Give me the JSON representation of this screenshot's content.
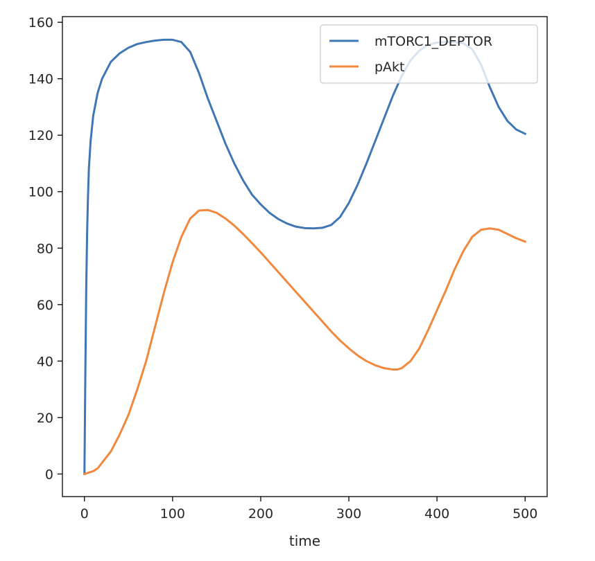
{
  "chart_data": {
    "type": "line",
    "title": "",
    "xlabel": "time",
    "ylabel": "",
    "xlim": [
      -25,
      525
    ],
    "ylim": [
      -8,
      162
    ],
    "x_ticks": [
      0,
      100,
      200,
      300,
      400,
      500
    ],
    "y_ticks": [
      0,
      20,
      40,
      60,
      80,
      100,
      120,
      140,
      160
    ],
    "x_tick_labels": [
      "0",
      "100",
      "200",
      "300",
      "400",
      "500"
    ],
    "y_tick_labels": [
      "0",
      "20",
      "40",
      "60",
      "80",
      "100",
      "120",
      "140",
      "160"
    ],
    "grid": false,
    "legend_position": "upper right",
    "series": [
      {
        "name": "mTORC1_DEPTOR",
        "color": "#3f76b4",
        "x": [
          0,
          1,
          2,
          3,
          4,
          5,
          7,
          10,
          15,
          20,
          30,
          40,
          50,
          60,
          70,
          80,
          90,
          100,
          110,
          120,
          130,
          140,
          150,
          160,
          170,
          180,
          190,
          200,
          210,
          220,
          230,
          240,
          250,
          260,
          270,
          280,
          290,
          300,
          310,
          320,
          330,
          340,
          350,
          360,
          370,
          380,
          390,
          400,
          410,
          420,
          430,
          440,
          450,
          460,
          470,
          480,
          490,
          500
        ],
        "y": [
          0,
          35,
          65,
          85,
          98,
          108,
          118,
          127,
          135,
          140,
          146,
          149,
          151,
          152.3,
          153,
          153.5,
          153.8,
          153.8,
          153,
          149.5,
          142,
          133,
          125,
          117,
          110,
          104,
          99,
          95.5,
          92.5,
          90.3,
          88.7,
          87.6,
          87.1,
          87,
          87.2,
          88.2,
          91,
          96,
          102.5,
          110,
          118,
          126,
          134,
          141,
          146.5,
          150,
          152,
          152.8,
          153,
          153,
          152.5,
          150.5,
          145,
          137,
          130,
          125,
          122,
          120.5
        ]
      },
      {
        "name": "pAkt",
        "color": "#f0883e",
        "x": [
          0,
          5,
          10,
          15,
          20,
          30,
          40,
          50,
          60,
          70,
          80,
          90,
          100,
          110,
          120,
          130,
          140,
          150,
          160,
          170,
          180,
          190,
          200,
          210,
          220,
          230,
          240,
          250,
          260,
          270,
          280,
          290,
          300,
          310,
          320,
          330,
          340,
          350,
          355,
          360,
          370,
          380,
          390,
          400,
          410,
          420,
          430,
          440,
          450,
          460,
          470,
          480,
          490,
          500
        ],
        "y": [
          0,
          0.5,
          1,
          2,
          4,
          8,
          14,
          21,
          30,
          40,
          52,
          64,
          75,
          84,
          90.5,
          93.3,
          93.5,
          92.5,
          90.5,
          88,
          85,
          81.8,
          78.5,
          75,
          71.5,
          68,
          64.5,
          61,
          57.5,
          54,
          50.5,
          47.3,
          44.5,
          42,
          40,
          38.5,
          37.5,
          37,
          37,
          37.5,
          40,
          44.5,
          51,
          58,
          65,
          72.5,
          79,
          84,
          86.5,
          87,
          86.5,
          85,
          83.5,
          82.3
        ]
      }
    ]
  }
}
